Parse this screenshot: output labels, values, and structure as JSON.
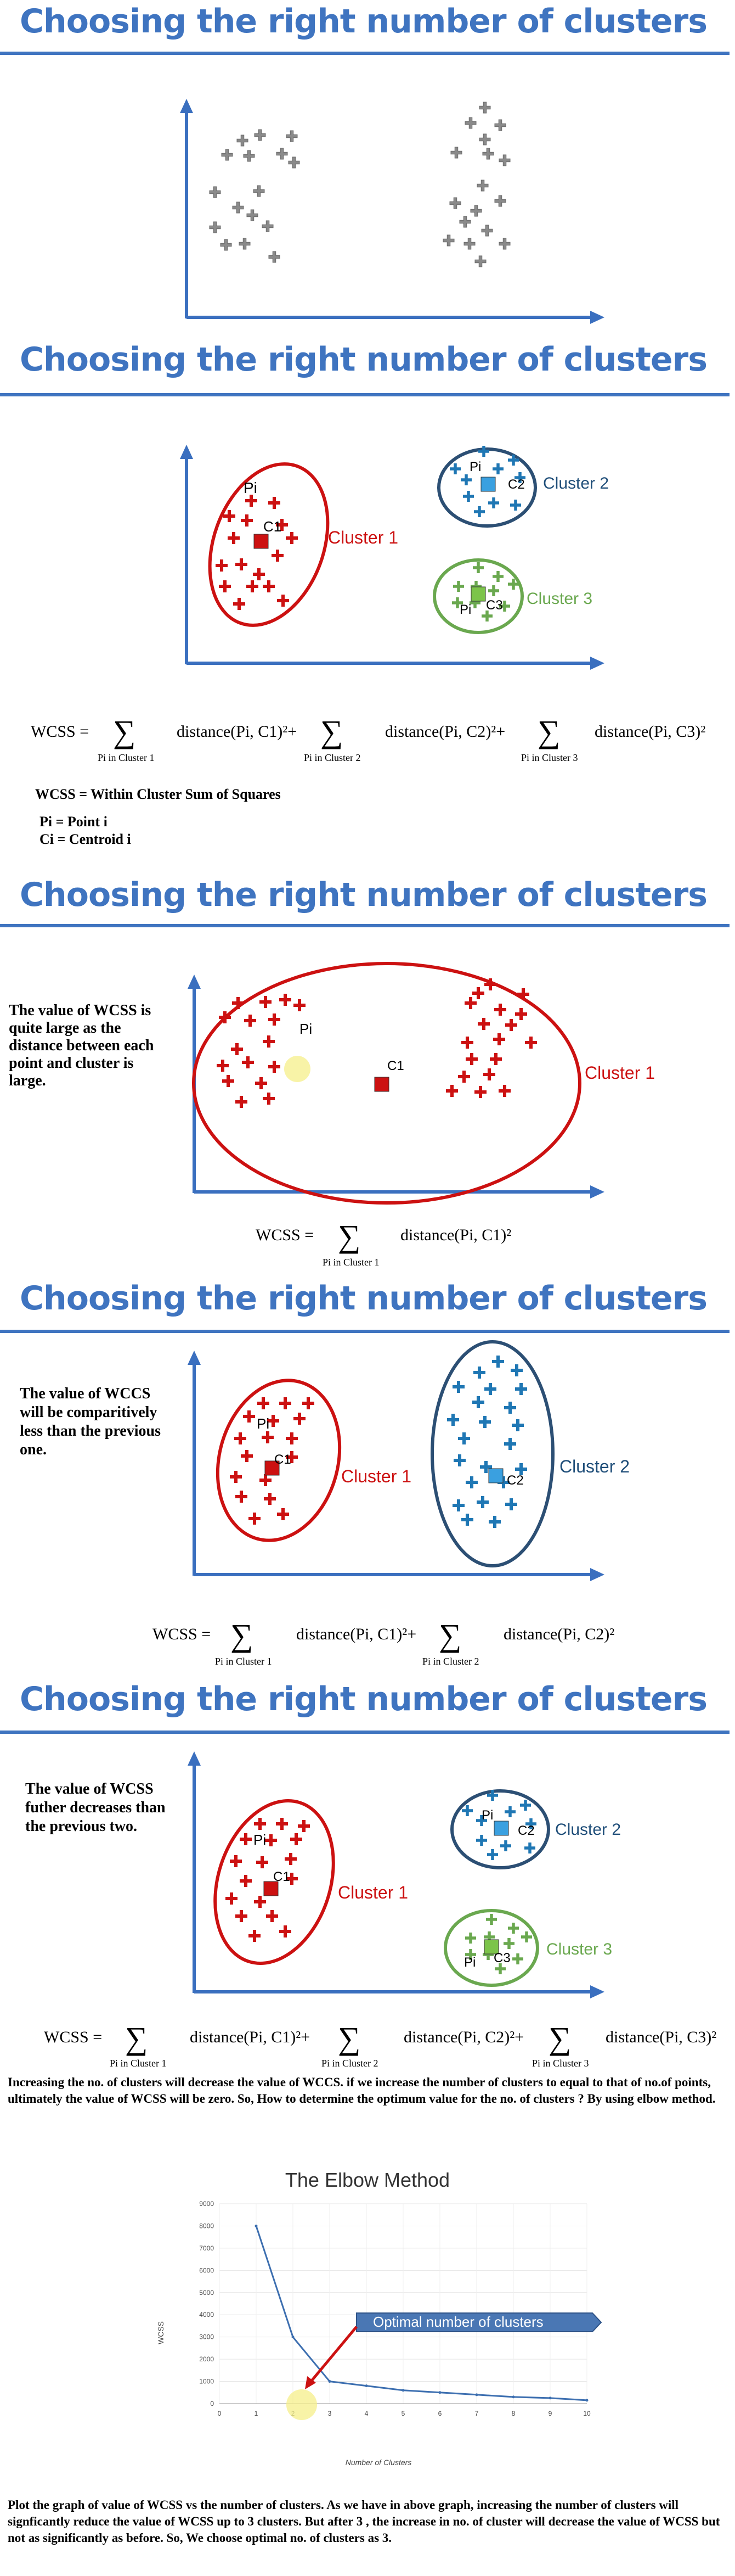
{
  "heading": "Choosing the right number of clusters",
  "colors": {
    "title": "#3f74c0",
    "axis": "#3a6fbf",
    "red": "#cc1111",
    "blue": "#1f77b4",
    "green": "#6aa84f",
    "gray": "#8a8a8a",
    "blue_ellipse": "#2c4f74"
  },
  "section2": {
    "labels": {
      "pi1": "Pi",
      "c1": "C1",
      "cluster1": "Cluster 1",
      "pi2": "Pi",
      "c2": "C2",
      "cluster2": "Cluster 2",
      "pi3": "Pi",
      "c3": "C3",
      "cluster3": "Cluster 3"
    },
    "formula": {
      "lhs": "WCSS =",
      "sum": "∑",
      "t1": "distance(Pi, C1)²+",
      "t2": "distance(Pi, C2)²+",
      "t3": "distance(Pi, C3)²",
      "s1": "Pi in Cluster 1",
      "s2": "Pi in Cluster 2",
      "s3": "Pi in Cluster 3"
    },
    "def": "WCSS = Within Cluster Sum of Squares",
    "pi_def": "Pi = Point i",
    "ci_def": "Ci = Centroid i"
  },
  "section3": {
    "note": "The value of WCSS is quite large as the distance between each point and cluster is large.",
    "labels": {
      "pi": "Pi",
      "c1": "C1",
      "cluster1": "Cluster 1"
    },
    "formula": {
      "lhs": "WCSS =",
      "sum": "∑",
      "t1": "distance(Pi, C1)²",
      "s1": "Pi in Cluster 1"
    }
  },
  "section4": {
    "note": "The value of WCCS will be comparitively less than the previous one.",
    "labels": {
      "pi": "Pi",
      "c1": "C1",
      "cluster1": "Cluster 1",
      "c2": "C2",
      "cluster2": "Cluster 2"
    },
    "formula": {
      "lhs": "WCSS =",
      "sum": "∑",
      "t1": "distance(Pi, C1)²+",
      "t2": "distance(Pi, C2)²",
      "s1": "Pi in Cluster 1",
      "s2": "Pi in Cluster 2"
    }
  },
  "section5": {
    "note": "The value of WCSS futher decreases than the previous two.",
    "labels": {
      "pi1": "Pi",
      "c1": "C1",
      "cluster1": "Cluster 1",
      "pi2": "Pi",
      "c2": "C2",
      "cluster2": "Cluster 2",
      "pi3": "Pi",
      "c3": "C3",
      "cluster3": "Cluster 3"
    },
    "formula": {
      "lhs": "WCSS =",
      "sum": "∑",
      "t1": "distance(Pi, C1)²+",
      "t2": "distance(Pi, C2)²+",
      "t3": "distance(Pi, C3)²",
      "s1": "Pi in Cluster 1",
      "s2": "Pi in Cluster 2",
      "s3": "Pi in Cluster 3"
    }
  },
  "para1": "Increasing the no. of clusters will decrease the value of WCCS. if we increase the number of clusters to equal to that of no.of points, ultimately the value of WCSS will be zero. So, How to determine the optimum value for the no. of clusters ? By using elbow method.",
  "para2": "Plot the graph of value of WCSS vs the number of clusters. As we have in above graph, increasing the number of clusters will signficantly reduce the value of WCSS up to 3 clusters. But after 3 , the increase in no. of cluster will decrease the value of WCSS but not as significantly as before. So, We choose optimal no. of clusters as 3.",
  "chart_data": {
    "type": "line",
    "title": "The Elbow Method",
    "xlabel": "Number of Clusters",
    "ylabel": "WCSS",
    "x": [
      1,
      2,
      3,
      4,
      5,
      6,
      7,
      8,
      9,
      10
    ],
    "y": [
      8000,
      3000,
      1000,
      800,
      600,
      500,
      400,
      300,
      250,
      150
    ],
    "xlim": [
      0,
      10
    ],
    "ylim": [
      0,
      9000
    ],
    "xticks": [
      "0",
      "1",
      "2",
      "3",
      "4",
      "5",
      "6",
      "7",
      "8",
      "9",
      "10"
    ],
    "yticks": [
      "0",
      "1000",
      "2000",
      "3000",
      "4000",
      "5000",
      "6000",
      "7000",
      "8000",
      "9000"
    ],
    "annotation": "Optimal number of clusters",
    "grid": true
  }
}
